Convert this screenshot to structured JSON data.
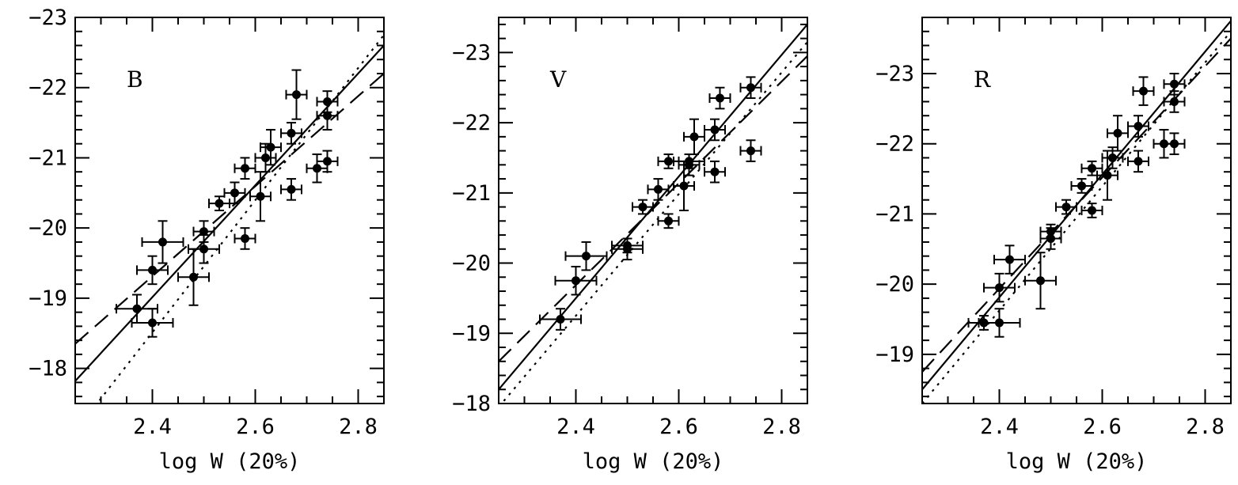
{
  "chart_data": [
    {
      "type": "scatter",
      "band": "B",
      "xlabel": "log W (20%)",
      "xlim": [
        2.25,
        2.85
      ],
      "ylim": [
        -17.5,
        -23.0
      ],
      "y_reversed": true,
      "x_ticks": [
        2.4,
        2.6,
        2.8
      ],
      "x_tick_labels": [
        "2.4",
        "2.6",
        "2.8"
      ],
      "y_ticks": [
        -18,
        -19,
        -20,
        -21,
        -22,
        -23
      ],
      "y_tick_labels": [
        "−18",
        "−19",
        "−20",
        "−21",
        "−22",
        "−23"
      ],
      "points": [
        {
          "x": 2.37,
          "y": -18.85,
          "xerr": 0.04,
          "yerr": 0.2
        },
        {
          "x": 2.4,
          "y": -18.65,
          "xerr": 0.04,
          "yerr": 0.2
        },
        {
          "x": 2.4,
          "y": -19.4,
          "xerr": 0.03,
          "yerr": 0.2
        },
        {
          "x": 2.42,
          "y": -19.8,
          "xerr": 0.04,
          "yerr": 0.3
        },
        {
          "x": 2.48,
          "y": -19.3,
          "xerr": 0.03,
          "yerr": 0.4
        },
        {
          "x": 2.5,
          "y": -19.7,
          "xerr": 0.03,
          "yerr": 0.2
        },
        {
          "x": 2.5,
          "y": -19.95,
          "xerr": 0.02,
          "yerr": 0.15
        },
        {
          "x": 2.53,
          "y": -20.35,
          "xerr": 0.02,
          "yerr": 0.1
        },
        {
          "x": 2.56,
          "y": -20.5,
          "xerr": 0.02,
          "yerr": 0.15
        },
        {
          "x": 2.58,
          "y": -19.85,
          "xerr": 0.02,
          "yerr": 0.15
        },
        {
          "x": 2.58,
          "y": -20.85,
          "xerr": 0.02,
          "yerr": 0.15
        },
        {
          "x": 2.61,
          "y": -20.45,
          "xerr": 0.02,
          "yerr": 0.35
        },
        {
          "x": 2.62,
          "y": -21.0,
          "xerr": 0.02,
          "yerr": 0.2
        },
        {
          "x": 2.63,
          "y": -21.15,
          "xerr": 0.02,
          "yerr": 0.25
        },
        {
          "x": 2.67,
          "y": -21.35,
          "xerr": 0.02,
          "yerr": 0.15
        },
        {
          "x": 2.68,
          "y": -21.9,
          "xerr": 0.02,
          "yerr": 0.35
        },
        {
          "x": 2.67,
          "y": -20.55,
          "xerr": 0.02,
          "yerr": 0.15
        },
        {
          "x": 2.72,
          "y": -20.85,
          "xerr": 0.02,
          "yerr": 0.2
        },
        {
          "x": 2.74,
          "y": -20.95,
          "xerr": 0.02,
          "yerr": 0.15
        },
        {
          "x": 2.74,
          "y": -21.6,
          "xerr": 0.02,
          "yerr": 0.2
        },
        {
          "x": 2.74,
          "y": -21.8,
          "xerr": 0.02,
          "yerr": 0.15
        }
      ],
      "fits": [
        {
          "style": "solid",
          "x": [
            2.25,
            2.85
          ],
          "y": [
            -17.82,
            -22.6
          ]
        },
        {
          "style": "dashed",
          "x": [
            2.25,
            2.85
          ],
          "y": [
            -18.35,
            -22.2
          ]
        },
        {
          "style": "dotted",
          "x": [
            2.25,
            2.85
          ],
          "y": [
            -17.1,
            -22.75
          ]
        }
      ]
    },
    {
      "type": "scatter",
      "band": "V",
      "xlabel": "log W (20%)",
      "xlim": [
        2.25,
        2.85
      ],
      "ylim": [
        -18.0,
        -23.5
      ],
      "y_reversed": true,
      "x_ticks": [
        2.4,
        2.6,
        2.8
      ],
      "x_tick_labels": [
        "2.4",
        "2.6",
        "2.8"
      ],
      "y_ticks": [
        -18,
        -19,
        -20,
        -21,
        -22,
        -23
      ],
      "y_tick_labels": [
        "−18",
        "−19",
        "−20",
        "−21",
        "−22",
        "−23"
      ],
      "points": [
        {
          "x": 2.37,
          "y": -19.2,
          "xerr": 0.04,
          "yerr": 0.15
        },
        {
          "x": 2.4,
          "y": -19.75,
          "xerr": 0.04,
          "yerr": 0.2
        },
        {
          "x": 2.42,
          "y": -20.1,
          "xerr": 0.04,
          "yerr": 0.2
        },
        {
          "x": 2.5,
          "y": -20.2,
          "xerr": 0.03,
          "yerr": 0.15
        },
        {
          "x": 2.5,
          "y": -20.25,
          "xerr": 0.03,
          "yerr": 0.1
        },
        {
          "x": 2.53,
          "y": -20.8,
          "xerr": 0.02,
          "yerr": 0.1
        },
        {
          "x": 2.56,
          "y": -21.05,
          "xerr": 0.02,
          "yerr": 0.15
        },
        {
          "x": 2.58,
          "y": -20.6,
          "xerr": 0.02,
          "yerr": 0.1
        },
        {
          "x": 2.58,
          "y": -21.45,
          "xerr": 0.02,
          "yerr": 0.1
        },
        {
          "x": 2.61,
          "y": -21.1,
          "xerr": 0.02,
          "yerr": 0.35
        },
        {
          "x": 2.62,
          "y": -21.4,
          "xerr": 0.02,
          "yerr": 0.15
        },
        {
          "x": 2.62,
          "y": -21.45,
          "xerr": 0.03,
          "yerr": 0.1
        },
        {
          "x": 2.63,
          "y": -21.8,
          "xerr": 0.02,
          "yerr": 0.25
        },
        {
          "x": 2.67,
          "y": -21.3,
          "xerr": 0.02,
          "yerr": 0.15
        },
        {
          "x": 2.67,
          "y": -21.9,
          "xerr": 0.02,
          "yerr": 0.15
        },
        {
          "x": 2.68,
          "y": -22.35,
          "xerr": 0.02,
          "yerr": 0.15
        },
        {
          "x": 2.74,
          "y": -21.6,
          "xerr": 0.02,
          "yerr": 0.15
        },
        {
          "x": 2.74,
          "y": -22.5,
          "xerr": 0.02,
          "yerr": 0.15
        }
      ],
      "fits": [
        {
          "style": "solid",
          "x": [
            2.25,
            2.85
          ],
          "y": [
            -18.2,
            -23.4
          ]
        },
        {
          "style": "dashed",
          "x": [
            2.25,
            2.85
          ],
          "y": [
            -18.6,
            -22.95
          ]
        },
        {
          "style": "dotted",
          "x": [
            2.25,
            2.85
          ],
          "y": [
            -17.95,
            -23.15
          ]
        }
      ]
    },
    {
      "type": "scatter",
      "band": "R",
      "xlabel": "log W (20%)",
      "xlim": [
        2.25,
        2.85
      ],
      "ylim": [
        -18.3,
        -23.8
      ],
      "y_reversed": true,
      "x_ticks": [
        2.4,
        2.6,
        2.8
      ],
      "x_tick_labels": [
        "2.4",
        "2.6",
        "2.8"
      ],
      "y_ticks": [
        -19,
        -20,
        -21,
        -22,
        -23
      ],
      "y_tick_labels": [
        "−19",
        "−20",
        "−21",
        "−22",
        "−23"
      ],
      "points": [
        {
          "x": 2.37,
          "y": -19.45,
          "xerr": 0.03,
          "yerr": 0.1
        },
        {
          "x": 2.4,
          "y": -19.45,
          "xerr": 0.04,
          "yerr": 0.2
        },
        {
          "x": 2.4,
          "y": -19.95,
          "xerr": 0.03,
          "yerr": 0.2
        },
        {
          "x": 2.42,
          "y": -20.35,
          "xerr": 0.03,
          "yerr": 0.2
        },
        {
          "x": 2.48,
          "y": -20.05,
          "xerr": 0.03,
          "yerr": 0.4
        },
        {
          "x": 2.5,
          "y": -20.65,
          "xerr": 0.02,
          "yerr": 0.15
        },
        {
          "x": 2.5,
          "y": -20.75,
          "xerr": 0.02,
          "yerr": 0.1
        },
        {
          "x": 2.53,
          "y": -21.1,
          "xerr": 0.02,
          "yerr": 0.1
        },
        {
          "x": 2.56,
          "y": -21.4,
          "xerr": 0.02,
          "yerr": 0.1
        },
        {
          "x": 2.58,
          "y": -21.05,
          "xerr": 0.02,
          "yerr": 0.1
        },
        {
          "x": 2.58,
          "y": -21.65,
          "xerr": 0.02,
          "yerr": 0.1
        },
        {
          "x": 2.61,
          "y": -21.55,
          "xerr": 0.02,
          "yerr": 0.35
        },
        {
          "x": 2.62,
          "y": -21.8,
          "xerr": 0.02,
          "yerr": 0.15
        },
        {
          "x": 2.63,
          "y": -22.15,
          "xerr": 0.02,
          "yerr": 0.25
        },
        {
          "x": 2.67,
          "y": -21.75,
          "xerr": 0.02,
          "yerr": 0.15
        },
        {
          "x": 2.67,
          "y": -22.25,
          "xerr": 0.02,
          "yerr": 0.15
        },
        {
          "x": 2.68,
          "y": -22.75,
          "xerr": 0.02,
          "yerr": 0.2
        },
        {
          "x": 2.72,
          "y": -22.0,
          "xerr": 0.02,
          "yerr": 0.2
        },
        {
          "x": 2.74,
          "y": -22.0,
          "xerr": 0.02,
          "yerr": 0.15
        },
        {
          "x": 2.74,
          "y": -22.6,
          "xerr": 0.02,
          "yerr": 0.15
        },
        {
          "x": 2.74,
          "y": -22.85,
          "xerr": 0.02,
          "yerr": 0.15
        }
      ],
      "fits": [
        {
          "style": "solid",
          "x": [
            2.25,
            2.85
          ],
          "y": [
            -18.5,
            -23.75
          ]
        },
        {
          "style": "dashed",
          "x": [
            2.25,
            2.85
          ],
          "y": [
            -18.75,
            -23.5
          ]
        },
        {
          "style": "dotted",
          "x": [
            2.25,
            2.85
          ],
          "y": [
            -18.3,
            -23.6
          ]
        }
      ]
    }
  ]
}
